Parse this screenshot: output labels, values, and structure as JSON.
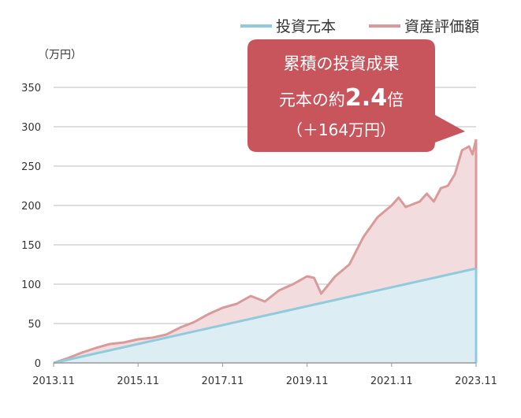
{
  "chart_data": {
    "type": "area",
    "ylabel": "（万円）",
    "ylim": [
      0,
      350
    ],
    "yticks": [
      0,
      50,
      100,
      150,
      200,
      250,
      300,
      350
    ],
    "xticks": [
      "2013.11",
      "2015.11",
      "2017.11",
      "2019.11",
      "2021.11",
      "2023.11"
    ],
    "x_range": [
      "2013.11",
      "2023.11"
    ],
    "grid": true,
    "legend_position": "top-right",
    "series": [
      {
        "name": "投資元本",
        "color": "#8fcbdc",
        "fill": "#dcedf4",
        "points": [
          [
            "2013.11",
            0
          ],
          [
            "2023.11",
            120
          ]
        ]
      },
      {
        "name": "資産評価額",
        "color": "#d99a9c",
        "fill": "#f3dcdd",
        "points": [
          [
            "2013.11",
            0
          ],
          [
            "2014.03",
            6
          ],
          [
            "2014.07",
            13
          ],
          [
            "2014.11",
            19
          ],
          [
            "2015.03",
            24
          ],
          [
            "2015.07",
            26
          ],
          [
            "2015.11",
            30
          ],
          [
            "2016.03",
            32
          ],
          [
            "2016.07",
            36
          ],
          [
            "2016.11",
            45
          ],
          [
            "2017.03",
            52
          ],
          [
            "2017.07",
            62
          ],
          [
            "2017.11",
            70
          ],
          [
            "2018.03",
            75
          ],
          [
            "2018.07",
            85
          ],
          [
            "2018.11",
            78
          ],
          [
            "2019.03",
            92
          ],
          [
            "2019.07",
            100
          ],
          [
            "2019.11",
            110
          ],
          [
            "2020.01",
            108
          ],
          [
            "2020.03",
            88
          ],
          [
            "2020.07",
            110
          ],
          [
            "2020.11",
            125
          ],
          [
            "2021.03",
            160
          ],
          [
            "2021.07",
            185
          ],
          [
            "2021.11",
            200
          ],
          [
            "2022.01",
            210
          ],
          [
            "2022.03",
            198
          ],
          [
            "2022.07",
            205
          ],
          [
            "2022.09",
            215
          ],
          [
            "2022.11",
            205
          ],
          [
            "2023.01",
            222
          ],
          [
            "2023.03",
            225
          ],
          [
            "2023.05",
            240
          ],
          [
            "2023.07",
            270
          ],
          [
            "2023.09",
            275
          ],
          [
            "2023.10",
            265
          ],
          [
            "2023.11",
            284
          ]
        ]
      }
    ],
    "annotation": {
      "line1": "累積の投資成果",
      "line2_prefix": "元本の約",
      "line2_value": "2.4",
      "line2_suffix": "倍",
      "line3": "（＋164万円）",
      "color": "#c8555c"
    }
  }
}
